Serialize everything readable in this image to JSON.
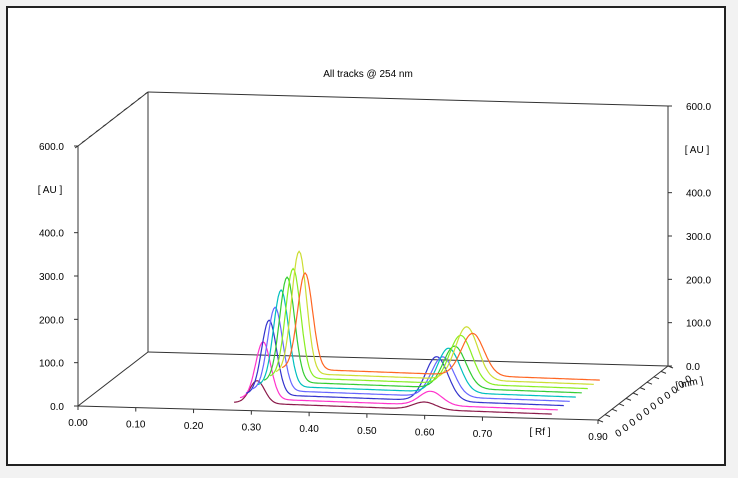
{
  "chart_data": {
    "type": "line",
    "title": "All tracks @ 254 nm",
    "xlabel": "[ Rf ]",
    "ylabel": "[ AU ]",
    "zlabel": "[ mm ]",
    "xlim": [
      0.0,
      0.9
    ],
    "ylim": [
      0.0,
      600.0
    ],
    "x_ticks": [
      "0.00",
      "0.10",
      "0.20",
      "0.30",
      "0.40",
      "0.50",
      "0.60",
      "0.70",
      "0.90"
    ],
    "y_ticks_left": [
      "0.0",
      "100.0",
      "200.0",
      "300.0",
      "400.0",
      "600.0"
    ],
    "y_ticks_right": [
      "0.0",
      "100.0",
      "200.0",
      "300.0",
      "400.0",
      "600.0"
    ],
    "z_tick_labels": [
      "0",
      "0",
      "0",
      "0",
      "0",
      "0",
      "0",
      "0",
      "0",
      "0",
      "0"
    ],
    "peak_model": {
      "peak1_rf": 0.31,
      "peak2_rf": 0.6,
      "baseline_au": 18,
      "peak_width_rf": 0.013
    },
    "series": [
      {
        "color": "#8b1a4a",
        "peak1_au": 70,
        "peak2_au": 35
      },
      {
        "color": "#ff33cc",
        "peak1_au": 150,
        "peak2_au": 50
      },
      {
        "color": "#3333cc",
        "peak1_au": 190,
        "peak2_au": 120
      },
      {
        "color": "#6666ff",
        "peak1_au": 210,
        "peak2_au": 110
      },
      {
        "color": "#00bfbf",
        "peak1_au": 240,
        "peak2_au": 120
      },
      {
        "color": "#33cc33",
        "peak1_au": 260,
        "peak2_au": 115
      },
      {
        "color": "#88ee22",
        "peak1_au": 270,
        "peak2_au": 130
      },
      {
        "color": "#ccdd33",
        "peak1_au": 300,
        "peak2_au": 140
      },
      {
        "color": "#ff6622",
        "peak1_au": 240,
        "peak2_au": 115
      }
    ]
  }
}
